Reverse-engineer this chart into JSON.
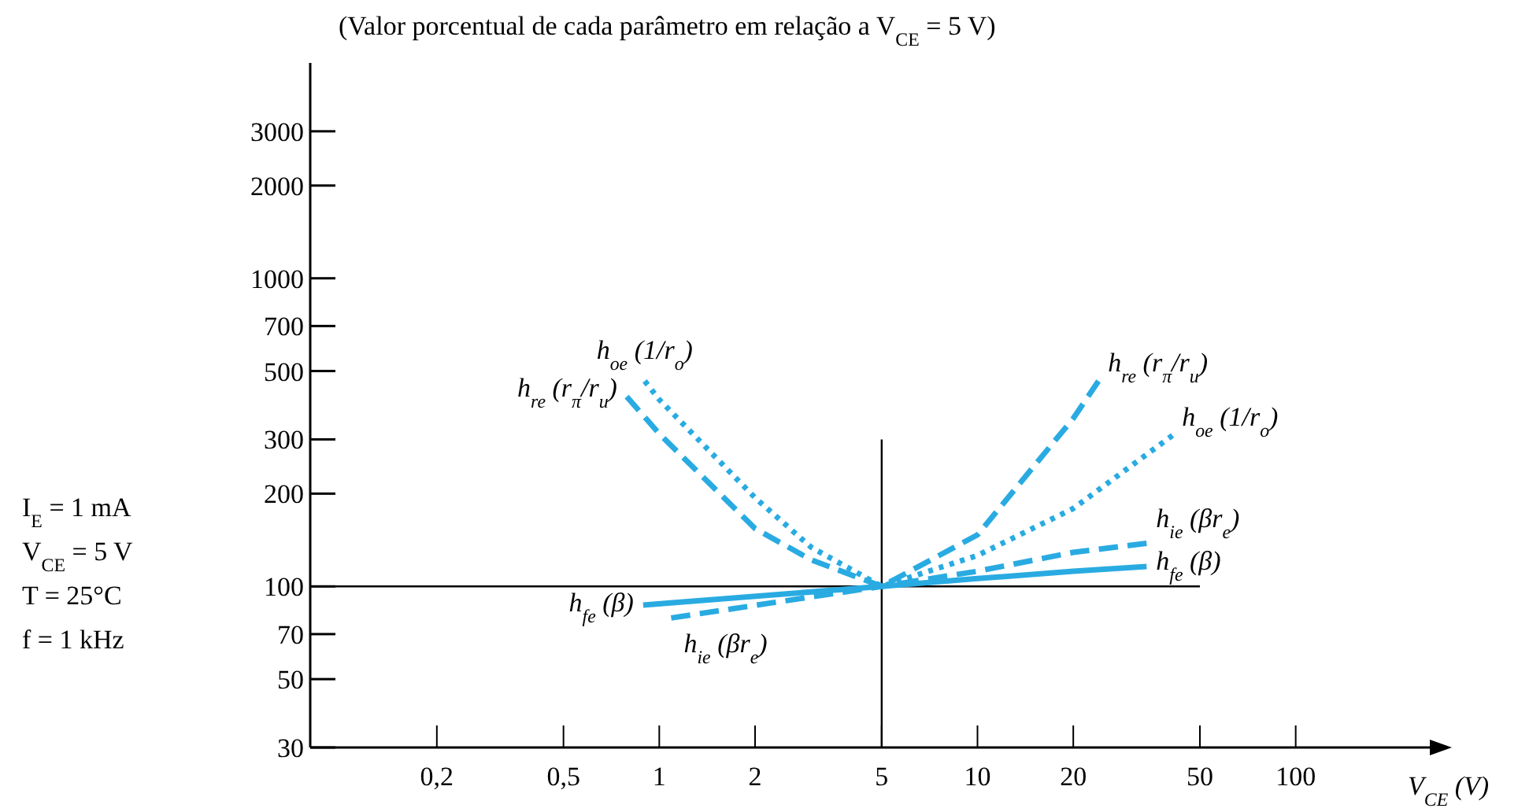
{
  "chart_data": {
    "type": "line",
    "title": "(Valor porcentual de cada parâmetro em relação a V$_{CE}$ = 5 V)",
    "xlabel": "V$_{CE}$ (V)",
    "log": "xy",
    "xlim": [
      0.08,
      270
    ],
    "ylim": [
      30,
      5000
    ],
    "xticks": [
      {
        "value": 0.2,
        "label": "0,2"
      },
      {
        "value": 0.5,
        "label": "0,5"
      },
      1,
      2,
      5,
      10,
      20,
      50,
      100
    ],
    "yticks": [
      30,
      50,
      70,
      100,
      200,
      300,
      500,
      700,
      1000,
      2000,
      3000
    ],
    "ref_lines": [
      {
        "axis": "y",
        "value": 100,
        "color": "#000000"
      },
      {
        "axis": "x",
        "value": 5,
        "color": "#000000"
      }
    ],
    "annotations": [
      "I$_{E}$ = 1 mA",
      "V$_{CE}$ = 5 V",
      "T = 25°C",
      "f = 1 kHz"
    ],
    "grid": false,
    "series": [
      {
        "name": "h$_{re}$ (r$_{π}$/r$_{u}$)",
        "color": "#29abe2",
        "line_style": "dashed",
        "x": [
          0.79,
          1,
          2,
          3,
          5,
          10,
          20,
          24
        ],
        "values": [
          413,
          313,
          154,
          122,
          100,
          147,
          351,
          464
        ]
      },
      {
        "name": "h$_{oe}$ (1/r$_{o}$)",
        "color": "#29abe2",
        "line_style": "dotted",
        "x": [
          0.9,
          1,
          2,
          3,
          5,
          10,
          20,
          41
        ],
        "values": [
          464,
          404,
          194,
          134,
          100,
          126,
          179,
          309
        ]
      },
      {
        "name": "h$_{ie}$ (βr$_{e}$)",
        "color": "#29abe2",
        "line_style": "dashed",
        "x": [
          1.09,
          5,
          10,
          20,
          34
        ],
        "values": [
          79,
          100,
          112,
          129,
          138
        ]
      },
      {
        "name": "h$_{fe}$ (β)",
        "color": "#29abe2",
        "line_style": "solid",
        "x": [
          0.89,
          5,
          10,
          20,
          34
        ],
        "values": [
          87,
          100,
          106,
          112,
          116
        ]
      }
    ]
  }
}
